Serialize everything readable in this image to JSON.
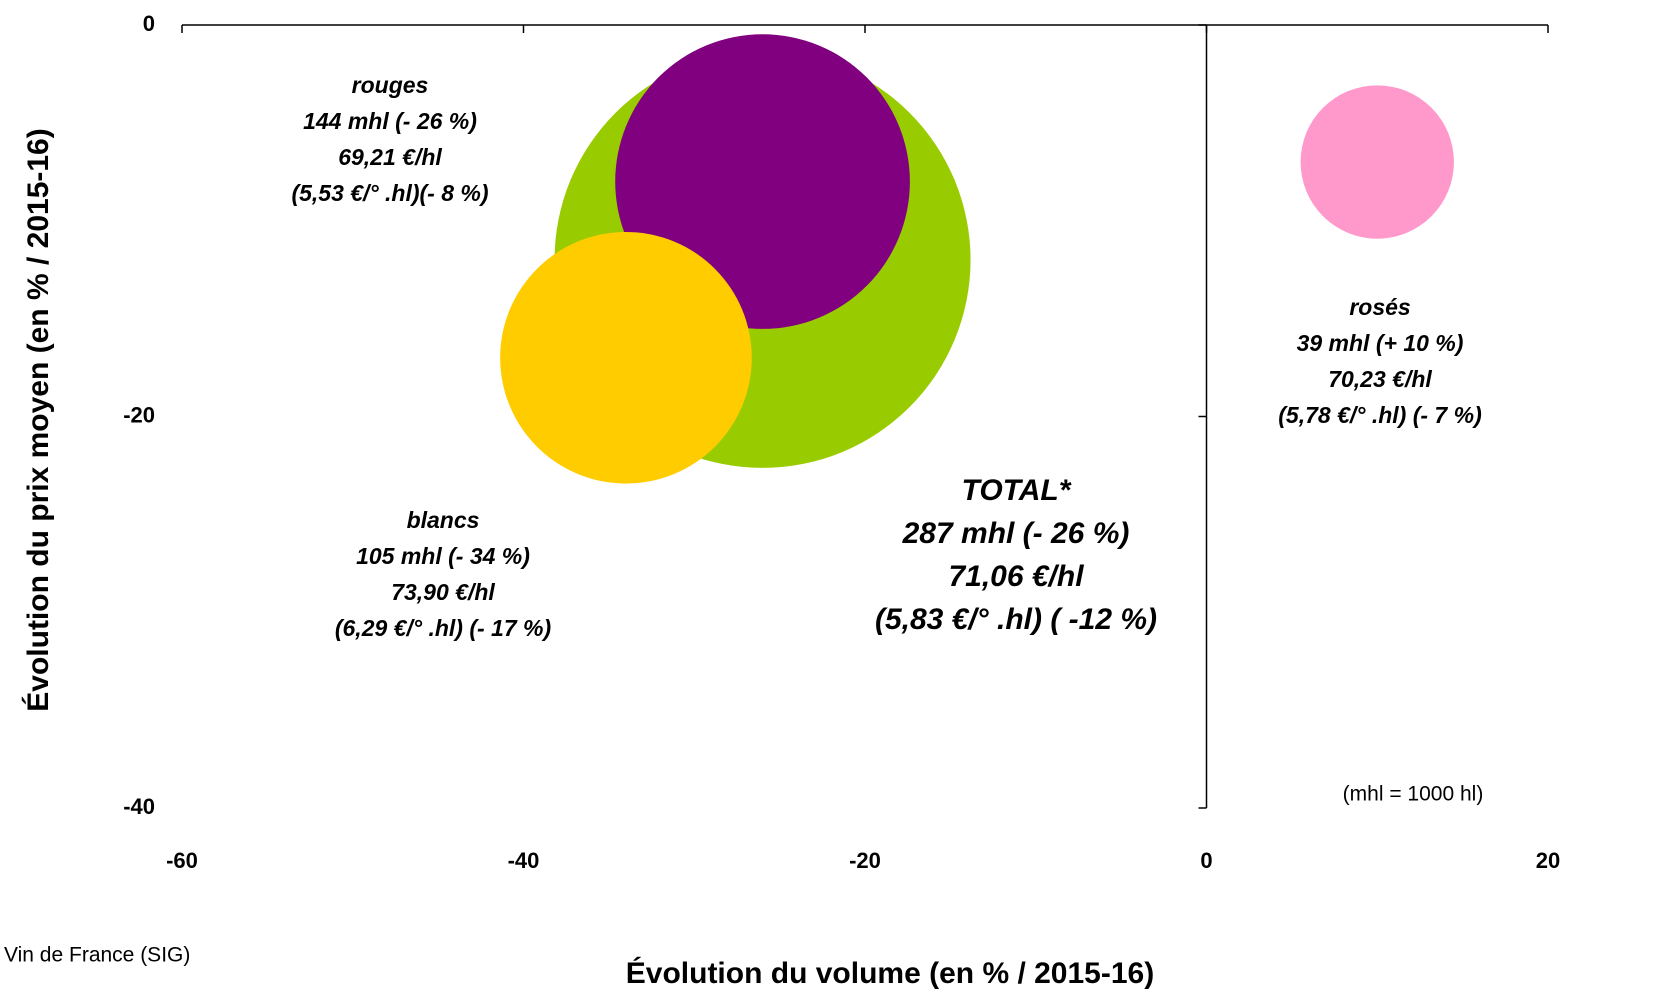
{
  "chart_data": {
    "type": "bubble",
    "xlabel": "Évolution du volume (en % / 2015-16)",
    "ylabel": "Évolution du prix moyen (en % / 2015-16)",
    "xlim": [
      -60,
      20
    ],
    "xticks": [
      -60,
      -40,
      -20,
      0,
      20
    ],
    "ylim": [
      -40,
      0
    ],
    "yticks": [
      -40,
      -20,
      0
    ],
    "series": [
      {
        "name": "TOTAL*",
        "color": "#99cc00",
        "x": -26,
        "y": -12,
        "size": 287,
        "lines": [
          "287 mhl (- 26 %)",
          "71,06 €/hl",
          "(5,83 €/° .hl) ( -12 %)"
        ]
      },
      {
        "name": "rouges",
        "color": "#800080",
        "x": -26,
        "y": -8,
        "size": 144,
        "lines": [
          "144 mhl (- 26 %)",
          "69,21 €/hl",
          "(5,53 €/° .hl)(- 8 %)"
        ]
      },
      {
        "name": "blancs",
        "color": "#ffcc00",
        "x": -34,
        "y": -17,
        "size": 105,
        "lines": [
          "105 mhl (- 34 %)",
          "73,90 €/hl",
          "(6,29 €/° .hl) (- 17 %)"
        ]
      },
      {
        "name": "rosés",
        "color": "#ff99cc",
        "x": 10,
        "y": -7,
        "size": 39,
        "lines": [
          "39 mhl (+ 10 %)",
          "70,23 €/hl",
          "(5,78 €/° .hl) (- 7 %)"
        ]
      }
    ],
    "note": "(mhl = 1000 hl)",
    "source": "Vin de France (SIG)"
  }
}
